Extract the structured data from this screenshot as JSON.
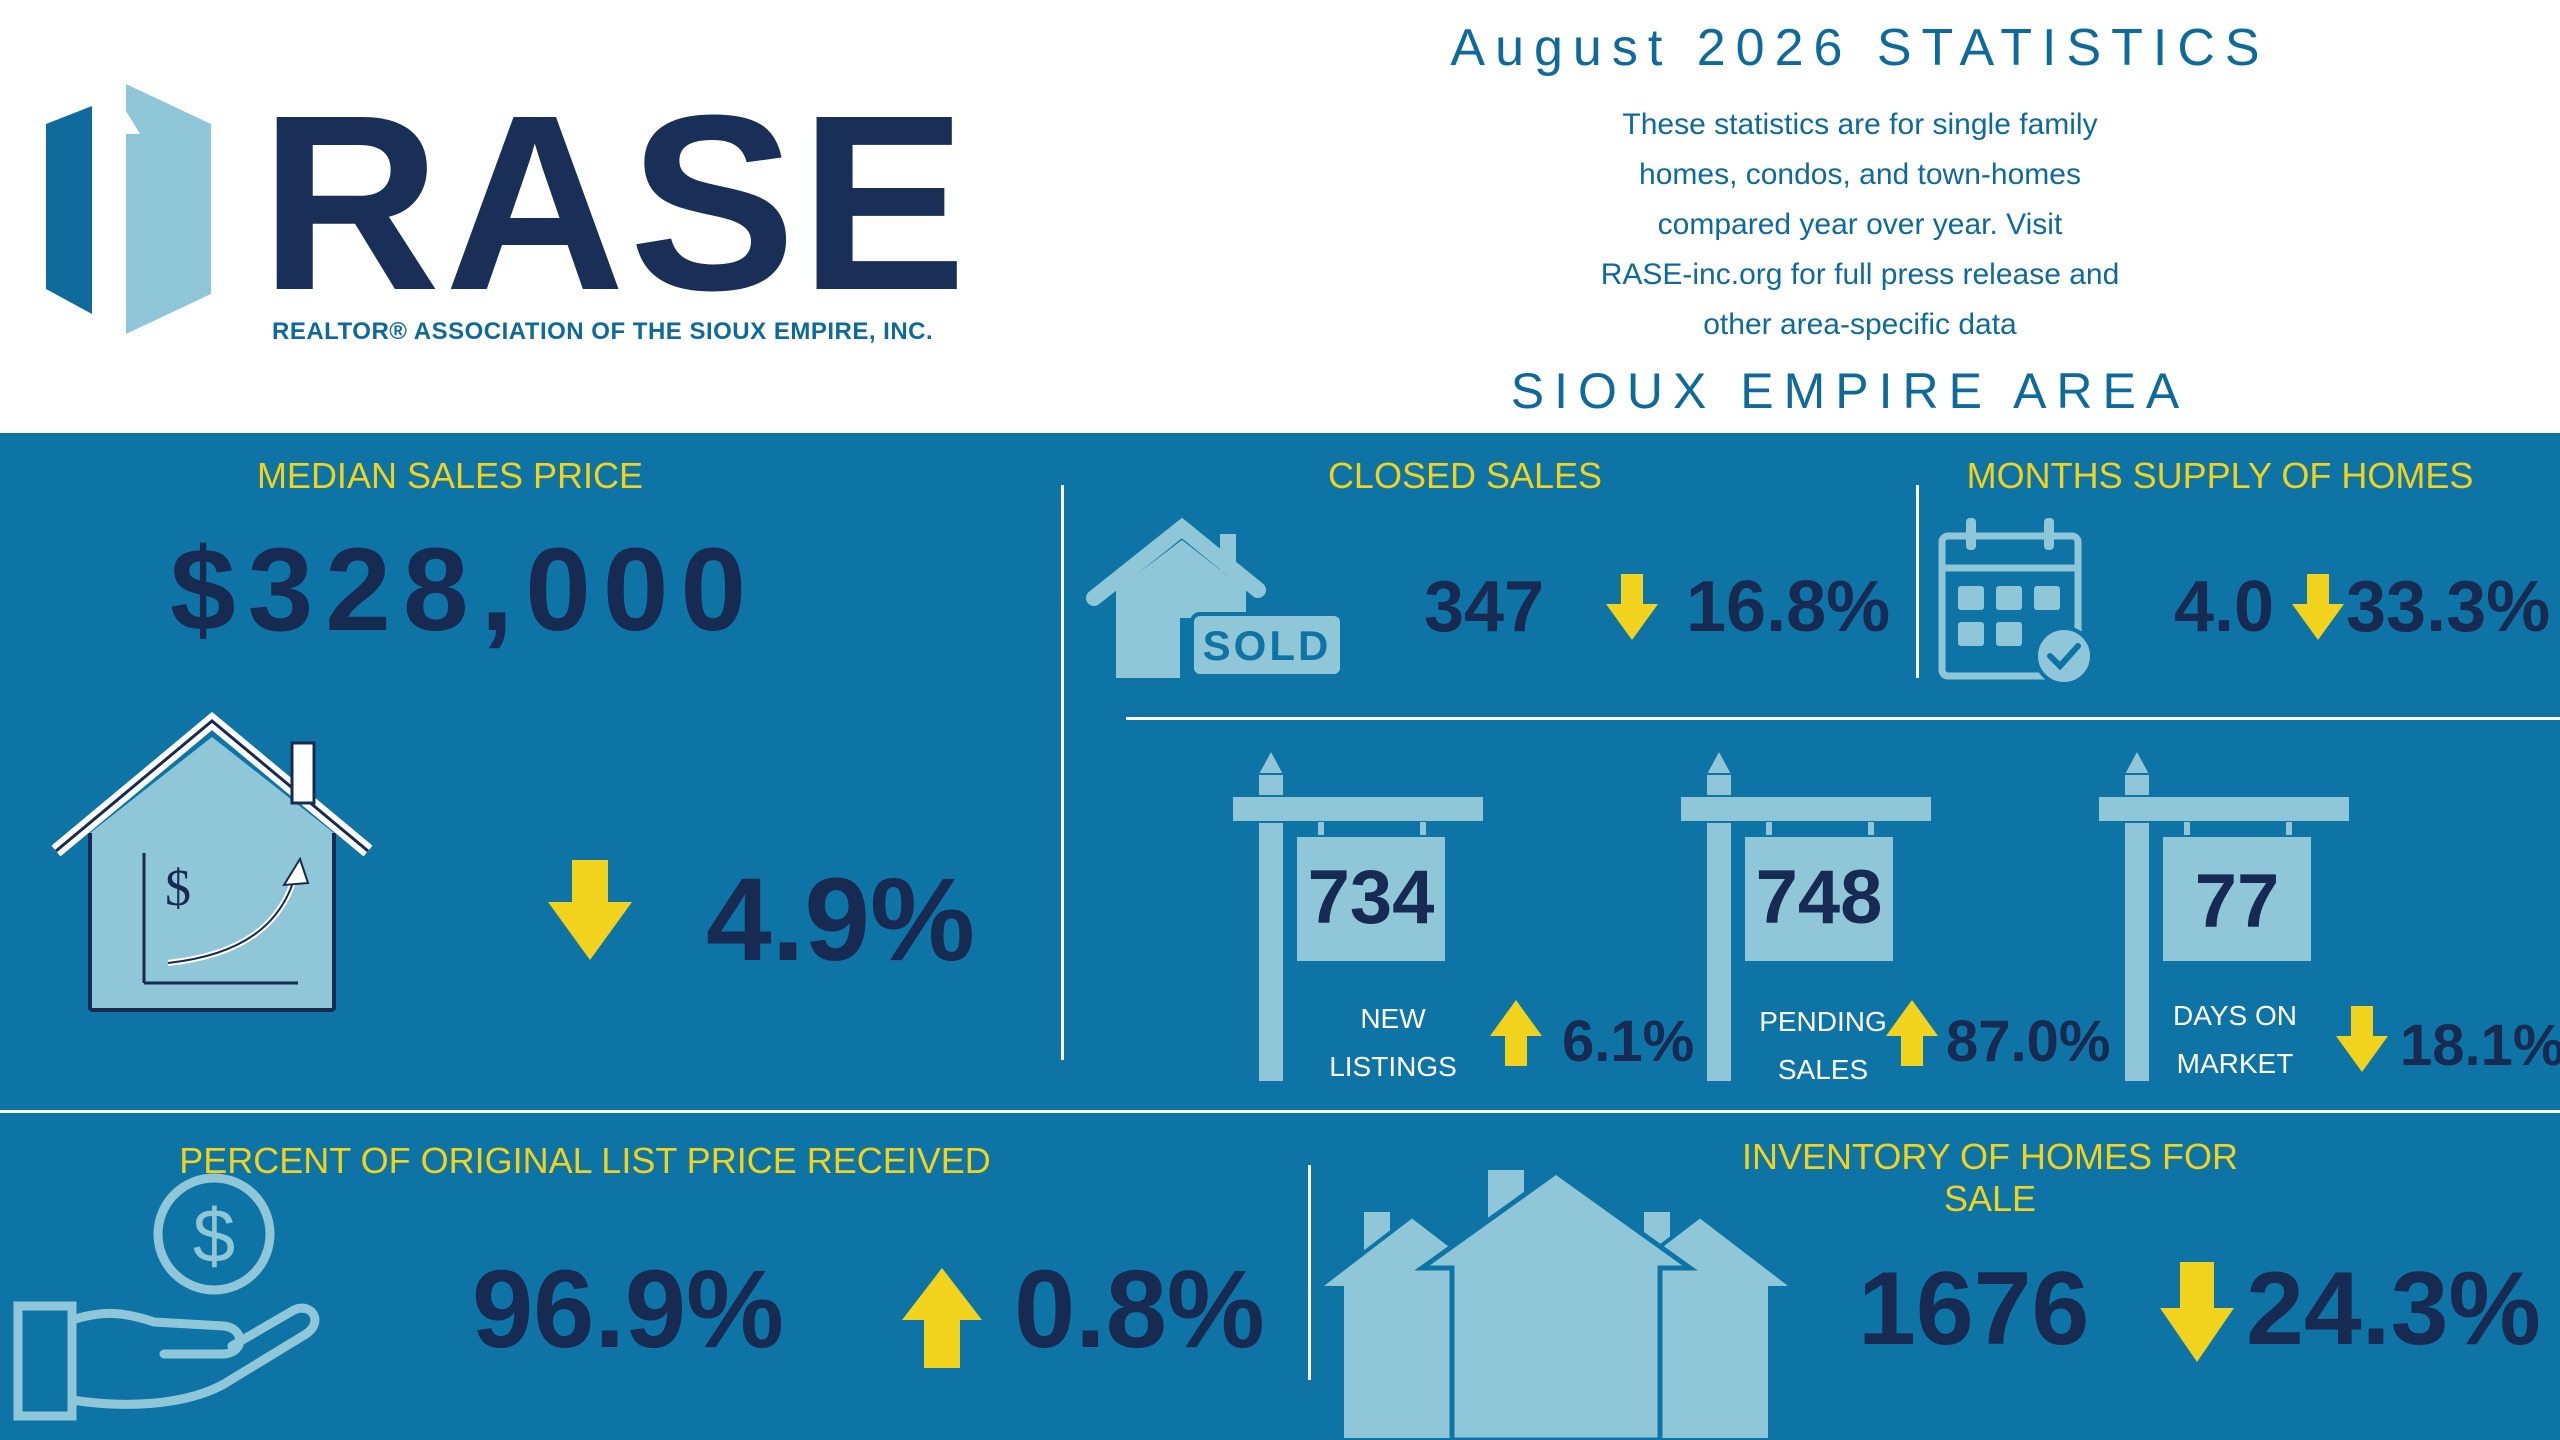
{
  "header": {
    "logo_text": "RASE",
    "logo_subtitle": "REALTOR® ASSOCIATION OF THE SIOUX EMPIRE, INC.",
    "stats_title": "August 2026 STATISTICS",
    "description_lines": [
      "These statistics are for single family",
      "homes, condos, and town-homes",
      "compared year over year. Visit",
      "RASE-inc.org for full press release and",
      "other area-specific data"
    ],
    "area_title": "SIOUX EMPIRE AREA"
  },
  "median_sales_price": {
    "label": "MEDIAN SALES PRICE",
    "value": "$328,000",
    "change": "4.9%",
    "direction": "down",
    "icon": "house-price-growth-icon"
  },
  "closed_sales": {
    "label": "CLOSED SALES",
    "value": "347",
    "change": "16.8%",
    "direction": "down",
    "icon": "sold-house-icon",
    "icon_text": "SOLD"
  },
  "months_supply": {
    "label": "MONTHS SUPPLY OF HOMES",
    "value": "4.0",
    "change": "33.3%",
    "direction": "down",
    "icon": "calendar-check-icon"
  },
  "signs": [
    {
      "value": "734",
      "label_line1": "NEW",
      "label_line2": "LISTINGS",
      "change": "6.1%",
      "direction": "up"
    },
    {
      "value": "748",
      "label_line1": "PENDING",
      "label_line2": "SALES",
      "change": "87.0%",
      "direction": "up"
    },
    {
      "value": "77",
      "label_line1": "DAYS ON",
      "label_line2": "MARKET",
      "change": "18.1%",
      "direction": "down"
    }
  ],
  "percent_original_list": {
    "label": "PERCENT OF ORIGINAL LIST PRICE RECEIVED",
    "value": "96.9%",
    "change": "0.8%",
    "direction": "up",
    "icon": "hand-dollar-icon"
  },
  "inventory": {
    "label": "INVENTORY OF HOMES FOR SALE",
    "value": "1676",
    "change": "24.3%",
    "direction": "down",
    "icon": "houses-icon"
  },
  "colors": {
    "navy": "#172a52",
    "band_blue": "#0e74a6",
    "light_blue": "#8fc7d8",
    "yellow": "#f1d21c",
    "accent_blue": "#0e6a9a"
  }
}
